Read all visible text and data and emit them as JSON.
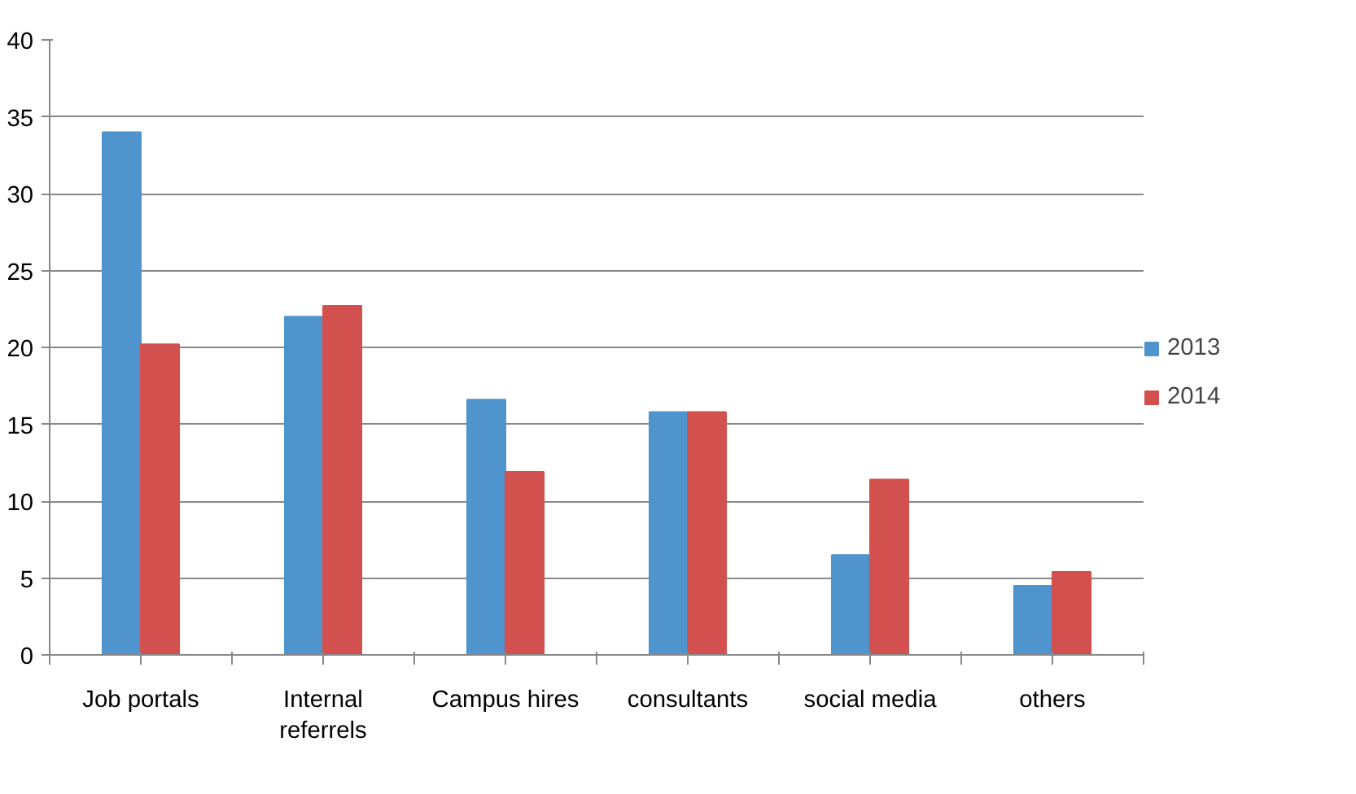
{
  "chart_data": {
    "type": "bar",
    "categories": [
      "Job portals",
      "Internal\nreferrels",
      "Campus hires",
      "consultants",
      "social media",
      "others"
    ],
    "series": [
      {
        "name": "2013",
        "color": "#4f94cd",
        "values": [
          34,
          22,
          16.6,
          15.8,
          6.5,
          4.5
        ]
      },
      {
        "name": "2014",
        "color": "#d2504d",
        "values": [
          20.2,
          22.7,
          11.9,
          15.8,
          11.4,
          5.4
        ]
      }
    ],
    "ylim": [
      0,
      40
    ],
    "yticks": [
      0,
      5,
      10,
      15,
      20,
      25,
      30,
      35,
      40
    ],
    "grid": "y",
    "legend": "right"
  }
}
